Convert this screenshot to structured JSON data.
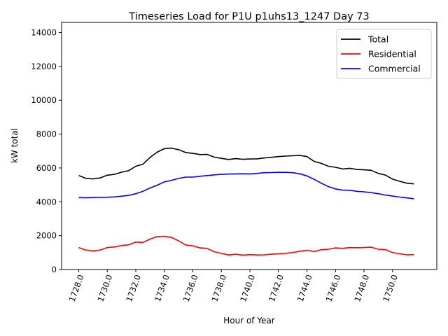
{
  "chart_data": {
    "type": "line",
    "title": "Timeseries Load for P1U p1uhs13_1247  Day 73",
    "xlabel": "Hour of Year",
    "ylabel": "kW total",
    "xlim": [
      1726.8,
      1753.1
    ],
    "ylim": [
      0,
      14600
    ],
    "xticks": [
      1728,
      1730,
      1732,
      1734,
      1736,
      1738,
      1740,
      1742,
      1744,
      1746,
      1748,
      1750
    ],
    "xtick_labels": [
      "1728.0",
      "1730.0",
      "1732.0",
      "1734.0",
      "1736.0",
      "1738.0",
      "1740.0",
      "1742.0",
      "1744.0",
      "1746.0",
      "1748.0",
      "1750.0"
    ],
    "yticks": [
      0,
      2000,
      4000,
      6000,
      8000,
      10000,
      12000,
      14000
    ],
    "ytick_labels": [
      "0",
      "2000",
      "4000",
      "6000",
      "8000",
      "10000",
      "12000",
      "14000"
    ],
    "grid": false,
    "legend_position": "top-right",
    "x_start": 1728,
    "x_step": 0.5,
    "series": [
      {
        "name": "Total",
        "color": "#000000",
        "values": [
          5550,
          5390,
          5350,
          5410,
          5570,
          5620,
          5750,
          5840,
          6100,
          6220,
          6620,
          6930,
          7140,
          7170,
          7080,
          6910,
          6860,
          6790,
          6800,
          6640,
          6570,
          6500,
          6550,
          6510,
          6530,
          6540,
          6590,
          6630,
          6670,
          6700,
          6720,
          6740,
          6670,
          6390,
          6270,
          6100,
          6040,
          5940,
          5980,
          5910,
          5890,
          5860,
          5680,
          5580,
          5340,
          5210,
          5100,
          5060
        ]
      },
      {
        "name": "Residential",
        "color": "#ff0000",
        "values": [
          1300,
          1150,
          1100,
          1150,
          1300,
          1330,
          1420,
          1460,
          1620,
          1600,
          1800,
          1950,
          1960,
          1900,
          1700,
          1450,
          1400,
          1280,
          1250,
          1050,
          950,
          860,
          900,
          850,
          880,
          860,
          870,
          900,
          930,
          960,
          1000,
          1080,
          1140,
          1060,
          1170,
          1200,
          1280,
          1250,
          1300,
          1290,
          1300,
          1320,
          1200,
          1180,
          1000,
          930,
          870,
          880
        ]
      },
      {
        "name": "Commercial",
        "color": "#0000ff",
        "values": [
          4250,
          4240,
          4250,
          4260,
          4270,
          4290,
          4330,
          4380,
          4480,
          4620,
          4820,
          4980,
          5180,
          5270,
          5380,
          5460,
          5460,
          5510,
          5550,
          5590,
          5620,
          5640,
          5650,
          5660,
          5650,
          5680,
          5720,
          5730,
          5740,
          5740,
          5720,
          5660,
          5530,
          5330,
          5100,
          4900,
          4760,
          4690,
          4680,
          4620,
          4590,
          4540,
          4480,
          4400,
          4340,
          4280,
          4230,
          4180
        ]
      }
    ]
  }
}
